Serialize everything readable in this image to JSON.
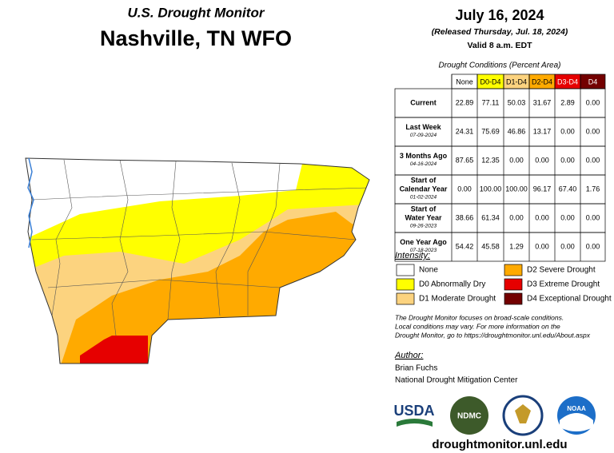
{
  "header": {
    "subtitle": "U.S. Drought Monitor",
    "title": "Nashville, TN WFO",
    "date": "July 16, 2024",
    "released": "(Released Thursday, Jul. 18, 2024)",
    "valid": "Valid 8 a.m. EDT"
  },
  "table": {
    "caption": "Drought Conditions (Percent Area)",
    "columns": [
      {
        "label": "None",
        "color": "#ffffff",
        "text": "#000000"
      },
      {
        "label": "D0-D4",
        "color": "#ffff00",
        "text": "#000000"
      },
      {
        "label": "D1-D4",
        "color": "#fcd37f",
        "text": "#000000"
      },
      {
        "label": "D2-D4",
        "color": "#ffaa00",
        "text": "#000000"
      },
      {
        "label": "D3-D4",
        "color": "#e60000",
        "text": "#ffffff"
      },
      {
        "label": "D4",
        "color": "#730000",
        "text": "#ffffff"
      }
    ],
    "rows": [
      {
        "label": [
          "Current"
        ],
        "date": null,
        "values": [
          "22.89",
          "77.11",
          "50.03",
          "31.67",
          "2.89",
          "0.00"
        ]
      },
      {
        "label": [
          "Last Week"
        ],
        "date": "07-09-2024",
        "values": [
          "24.31",
          "75.69",
          "46.86",
          "13.17",
          "0.00",
          "0.00"
        ]
      },
      {
        "label": [
          "3 Months Ago"
        ],
        "date": "04-16-2024",
        "values": [
          "87.65",
          "12.35",
          "0.00",
          "0.00",
          "0.00",
          "0.00"
        ]
      },
      {
        "label": [
          "Start of",
          "Calendar Year"
        ],
        "date": "01-02-2024",
        "values": [
          "0.00",
          "100.00",
          "100.00",
          "96.17",
          "67.40",
          "1.76"
        ]
      },
      {
        "label": [
          "Start of",
          "Water Year"
        ],
        "date": "09-26-2023",
        "values": [
          "38.66",
          "61.34",
          "0.00",
          "0.00",
          "0.00",
          "0.00"
        ]
      },
      {
        "label": [
          "One Year Ago"
        ],
        "date": "07-18-2023",
        "values": [
          "54.42",
          "45.58",
          "1.29",
          "0.00",
          "0.00",
          "0.00"
        ]
      }
    ]
  },
  "legend": {
    "title": "Intensity:",
    "items": [
      {
        "label": "None",
        "color": "#ffffff"
      },
      {
        "label": "D0 Abnormally Dry",
        "color": "#ffff00"
      },
      {
        "label": "D1 Moderate Drought",
        "color": "#fcd37f"
      },
      {
        "label": "D2 Severe Drought",
        "color": "#ffaa00"
      },
      {
        "label": "D3 Extreme Drought",
        "color": "#e60000"
      },
      {
        "label": "D4 Exceptional Drought",
        "color": "#730000"
      }
    ]
  },
  "note": [
    "The Drought Monitor focuses on broad-scale conditions.",
    "Local conditions may vary. For more information on the",
    "Drought Monitor, go to https://droughtmonitor.unl.edu/About.aspx"
  ],
  "author": {
    "title": "Author:",
    "lines": [
      "Brian Fuchs",
      "National Drought Mitigation Center"
    ]
  },
  "logos": [
    "USDA",
    "NDMC",
    "NOAA"
  ],
  "url": "droughtmonitor.unl.edu"
}
